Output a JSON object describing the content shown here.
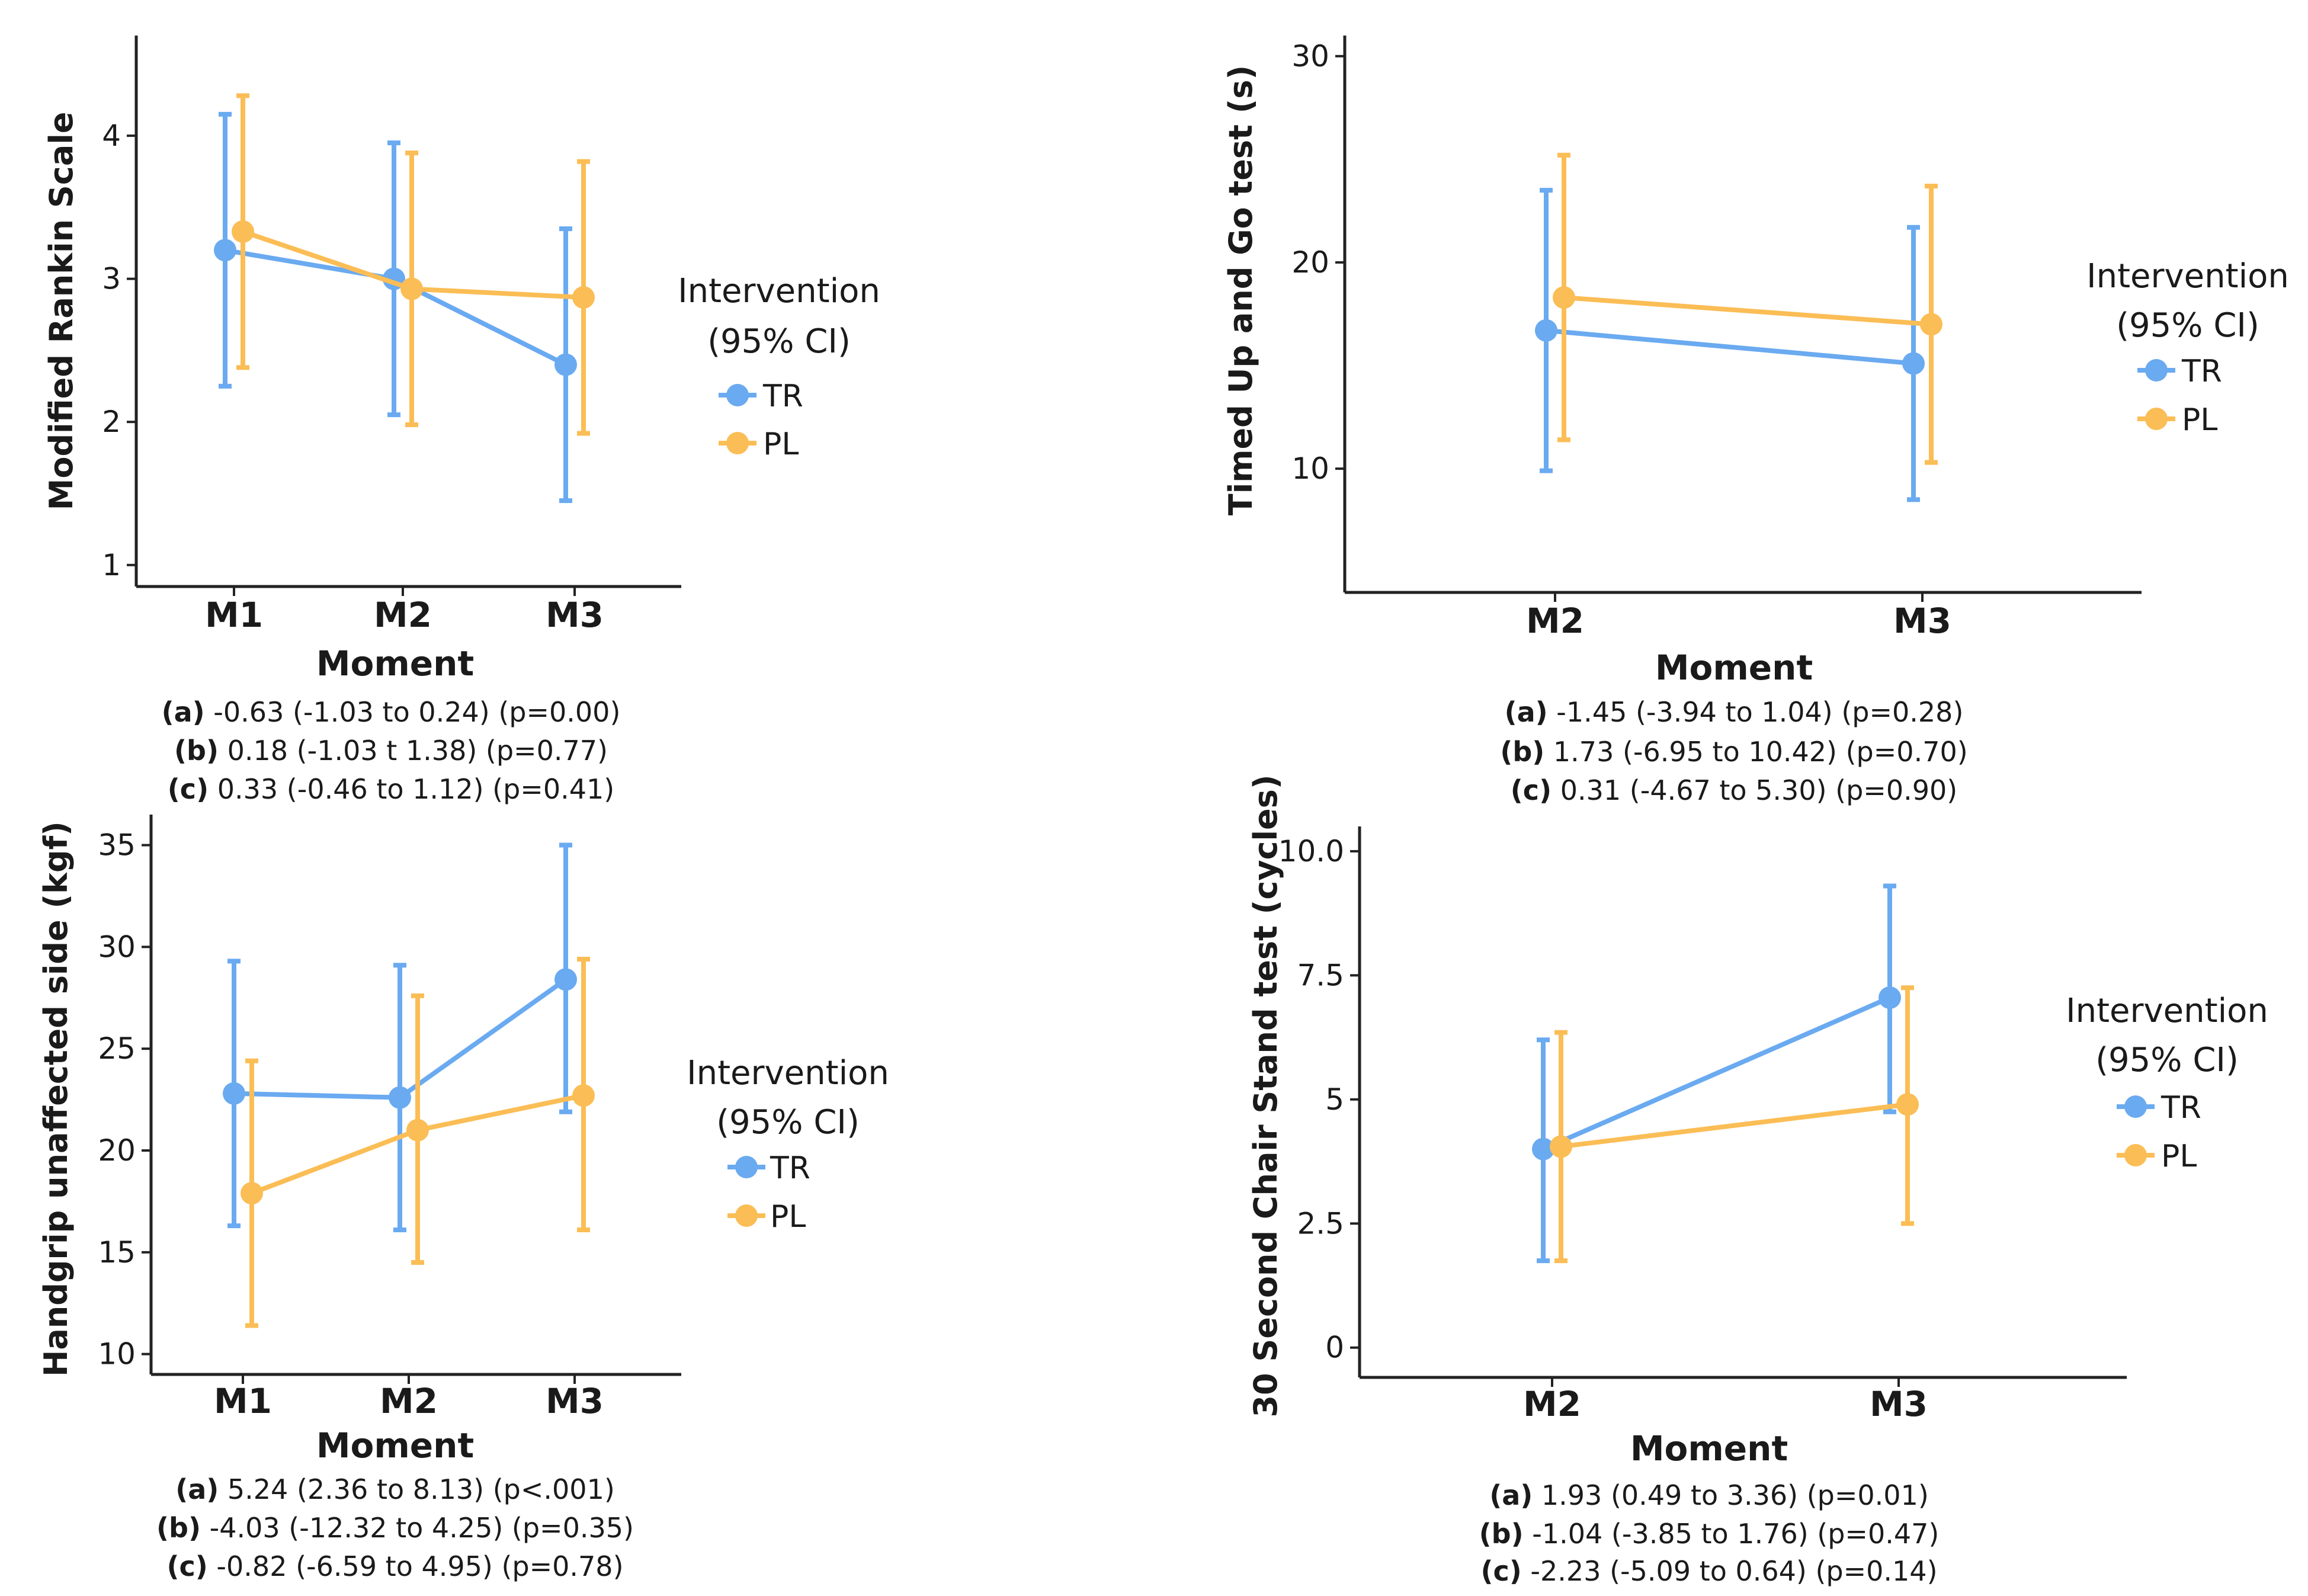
{
  "colors": {
    "TR": "#6aaaf0",
    "PL": "#fbbd55",
    "axis": "#222222"
  },
  "chart_data": [
    {
      "type": "line",
      "title": "",
      "xlabel": "Moment",
      "ylabel": "Modified Rankin Scale",
      "categories": [
        "M1",
        "M2",
        "M3"
      ],
      "ylim": [
        0.85,
        4.7
      ],
      "yticks": [
        "1",
        "2",
        "3",
        "4"
      ],
      "yticks_values": [
        1,
        2,
        3,
        4
      ],
      "series": [
        {
          "name": "TR",
          "values": [
            3.2,
            3.0,
            2.4
          ],
          "lower": [
            2.25,
            2.05,
            1.45
          ],
          "upper": [
            4.15,
            3.95,
            3.35
          ]
        },
        {
          "name": "PL",
          "values": [
            3.33,
            2.93,
            2.87
          ],
          "lower": [
            2.38,
            1.98,
            1.92
          ],
          "upper": [
            4.28,
            3.88,
            3.82
          ]
        }
      ],
      "legend": {
        "title_line1": "Intervention",
        "title_line2": "(95% CI)",
        "labels": [
          "TR",
          "PL"
        ]
      },
      "stats": [
        {
          "key": "(a)",
          "text": " -0.63 (-1.03 to 0.24) (p=0.00)"
        },
        {
          "key": "(b)",
          "text": " 0.18 (-1.03 t 1.38) (p=0.77)"
        },
        {
          "key": "(c)",
          "text": " 0.33 (-0.46 to 1.12) (p=0.41)"
        }
      ]
    },
    {
      "type": "line",
      "title": "",
      "xlabel": "Moment",
      "ylabel": "Timed Up and Go test (s)",
      "categories": [
        "M2",
        "M3"
      ],
      "ylim": [
        4.0,
        31.0
      ],
      "yticks": [
        "10",
        "20",
        "30"
      ],
      "yticks_values": [
        10,
        20,
        30
      ],
      "series": [
        {
          "name": "TR",
          "values": [
            16.7,
            15.1
          ],
          "lower": [
            9.9,
            8.5
          ],
          "upper": [
            23.5,
            21.7
          ]
        },
        {
          "name": "PL",
          "values": [
            18.3,
            17.0
          ],
          "lower": [
            11.4,
            10.3
          ],
          "upper": [
            25.2,
            23.7
          ]
        }
      ],
      "legend": {
        "title_line1": "Intervention",
        "title_line2": "(95% CI)",
        "labels": [
          "TR",
          "PL"
        ]
      },
      "stats": [
        {
          "key": "(a)",
          "text": " -1.45 (-3.94 to 1.04) (p=0.28)"
        },
        {
          "key": "(b)",
          "text": " 1.73 (-6.95 to 10.42) (p=0.70)"
        },
        {
          "key": "(c)",
          "text": " 0.31 (-4.67 to 5.30) (p=0.90)"
        }
      ]
    },
    {
      "type": "line",
      "title": "",
      "xlabel": "Moment",
      "ylabel": "Handgrip unaffected side (kgf)",
      "categories": [
        "M1",
        "M2",
        "M3"
      ],
      "ylim": [
        9.0,
        36.5
      ],
      "yticks": [
        "10",
        "15",
        "20",
        "25",
        "30",
        "35"
      ],
      "yticks_values": [
        10,
        15,
        20,
        25,
        30,
        35
      ],
      "series": [
        {
          "name": "TR",
          "values": [
            22.8,
            22.6,
            28.4
          ],
          "lower": [
            16.3,
            16.1,
            21.9
          ],
          "upper": [
            29.3,
            29.1,
            35.0
          ]
        },
        {
          "name": "PL",
          "values": [
            17.9,
            21.0,
            22.7
          ],
          "lower": [
            11.4,
            14.5,
            16.1
          ],
          "upper": [
            24.4,
            27.6,
            29.4
          ]
        }
      ],
      "legend": {
        "title_line1": "Intervention",
        "title_line2": "(95% CI)",
        "labels": [
          "TR",
          "PL"
        ]
      },
      "stats": [
        {
          "key": "(a)",
          "text": " 5.24 (2.36 to 8.13) (p<.001)"
        },
        {
          "key": "(b)",
          "text": " -4.03 (-12.32 to 4.25) (p=0.35)"
        },
        {
          "key": "(c)",
          "text": " -0.82 (-6.59 to 4.95) (p=0.78)"
        }
      ]
    },
    {
      "type": "line",
      "title": "",
      "xlabel": "Moment",
      "ylabel": "30 Second Chair Stand test (cycles)",
      "categories": [
        "M2",
        "M3"
      ],
      "ylim": [
        -0.6,
        10.5
      ],
      "yticks": [
        "0",
        "2.5",
        "5",
        "7.5",
        "10.0"
      ],
      "yticks_values": [
        0,
        2.5,
        5,
        7.5,
        10
      ],
      "series": [
        {
          "name": "TR",
          "values": [
            4.0,
            7.05
          ],
          "lower": [
            1.75,
            4.75
          ],
          "upper": [
            6.2,
            9.3
          ]
        },
        {
          "name": "PL",
          "values": [
            4.05,
            4.9
          ],
          "lower": [
            1.75,
            2.5
          ],
          "upper": [
            6.35,
            7.25
          ]
        }
      ],
      "legend": {
        "title_line1": "Intervention",
        "title_line2": "(95% CI)",
        "labels": [
          "TR",
          "PL"
        ]
      },
      "stats": [
        {
          "key": "(a)",
          "text": " 1.93 (0.49 to 3.36) (p=0.01)"
        },
        {
          "key": "(b)",
          "text": " -1.04 (-3.85 to 1.76) (p=0.47)"
        },
        {
          "key": "(c)",
          "text": " -2.23 (-5.09 to 0.64) (p=0.14)"
        }
      ]
    }
  ]
}
